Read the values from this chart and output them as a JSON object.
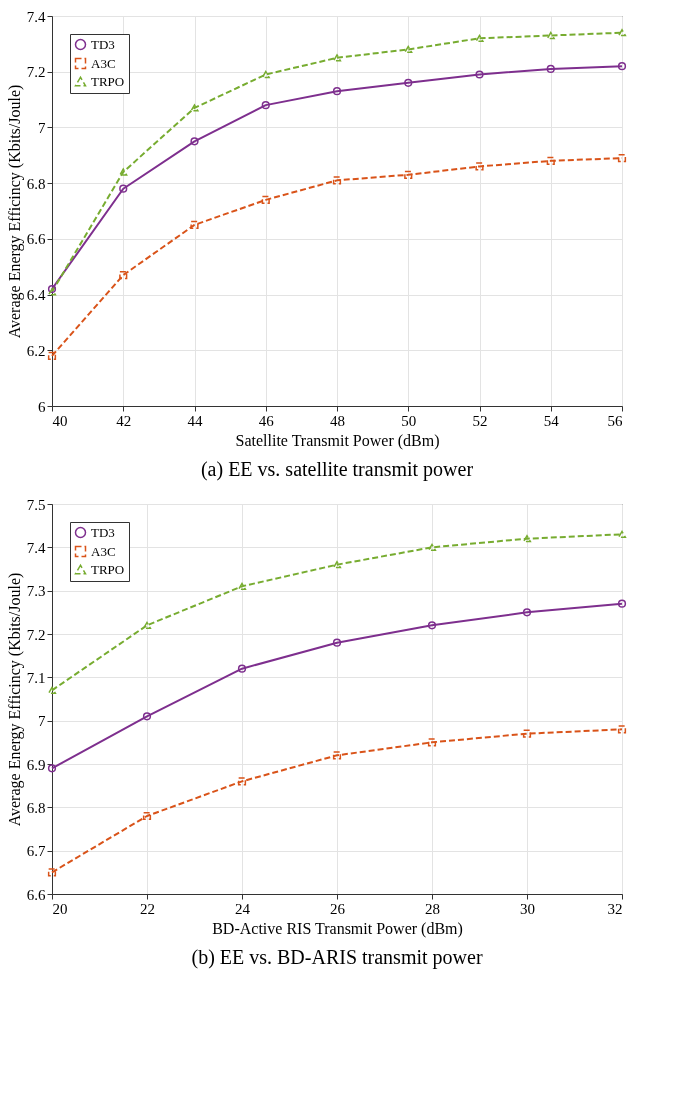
{
  "chart_data": [
    {
      "type": "line",
      "title": "(a) EE vs. satellite transmit power",
      "xlabel": "Satellite Transmit Power (dBm)",
      "ylabel": "Average Energy Efficincy (Kbits/Joule)",
      "x": [
        40,
        42,
        44,
        46,
        48,
        50,
        52,
        54,
        56
      ],
      "xlim": [
        40,
        56
      ],
      "xticks": [
        40,
        42,
        44,
        46,
        48,
        50,
        52,
        54,
        56
      ],
      "ylim": [
        6,
        7.4
      ],
      "yticks": [
        6,
        6.2,
        6.4,
        6.6,
        6.8,
        7,
        7.2,
        7.4
      ],
      "grid": true,
      "legend": "top left",
      "series": [
        {
          "name": "TD3",
          "color": "#7e2f8e",
          "marker": "circle",
          "line_style": "solid",
          "values": [
            6.42,
            6.78,
            6.95,
            7.08,
            7.13,
            7.16,
            7.19,
            7.21,
            7.22
          ]
        },
        {
          "name": "A3C",
          "color": "#d95319",
          "marker": "square",
          "line_style": "dashed",
          "values": [
            6.18,
            6.47,
            6.65,
            6.74,
            6.81,
            6.83,
            6.86,
            6.88,
            6.89
          ]
        },
        {
          "name": "TRPO",
          "color": "#77ac30",
          "marker": "triangle",
          "line_style": "dashed",
          "values": [
            6.41,
            6.84,
            7.07,
            7.19,
            7.25,
            7.28,
            7.32,
            7.33,
            7.34
          ]
        }
      ]
    },
    {
      "type": "line",
      "title": "(b) EE vs. BD-ARIS transmit power",
      "xlabel": "BD-Active RIS Transmit Power (dBm)",
      "ylabel": "Average Energy Efficincy (Kbits/Joule)",
      "x": [
        20,
        22,
        24,
        26,
        28,
        30,
        32
      ],
      "xlim": [
        20,
        32
      ],
      "xticks": [
        20,
        22,
        24,
        26,
        28,
        30,
        32
      ],
      "ylim": [
        6.6,
        7.5
      ],
      "yticks": [
        6.6,
        6.7,
        6.8,
        6.9,
        7,
        7.1,
        7.2,
        7.3,
        7.4,
        7.5
      ],
      "grid": true,
      "legend": "top left",
      "series": [
        {
          "name": "TD3",
          "color": "#7e2f8e",
          "marker": "circle",
          "line_style": "solid",
          "values": [
            6.89,
            7.01,
            7.12,
            7.18,
            7.22,
            7.25,
            7.27
          ]
        },
        {
          "name": "A3C",
          "color": "#d95319",
          "marker": "square",
          "line_style": "dashed",
          "values": [
            6.65,
            6.78,
            6.86,
            6.92,
            6.95,
            6.97,
            6.98
          ]
        },
        {
          "name": "TRPO",
          "color": "#77ac30",
          "marker": "triangle",
          "line_style": "dashed",
          "values": [
            7.07,
            7.22,
            7.31,
            7.36,
            7.4,
            7.42,
            7.43
          ]
        }
      ]
    }
  ]
}
